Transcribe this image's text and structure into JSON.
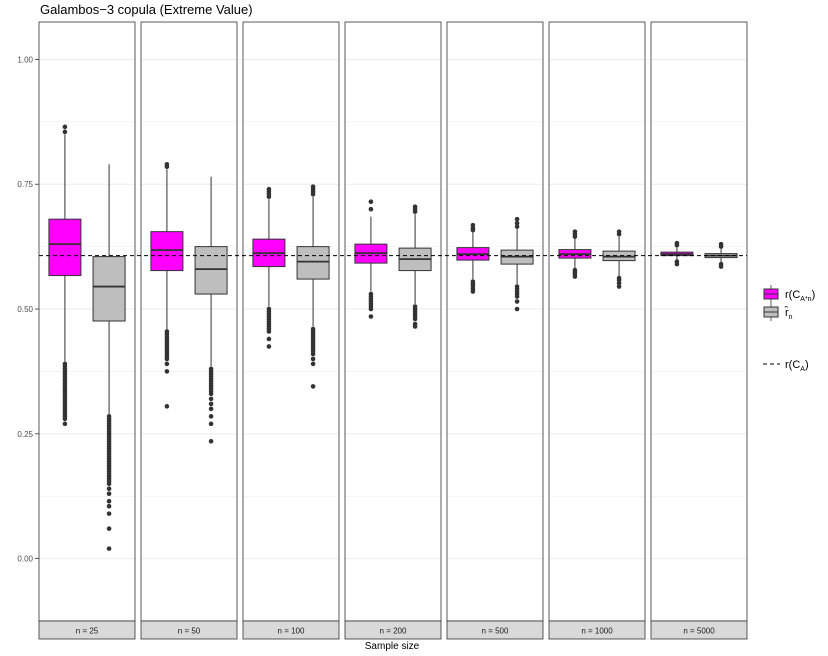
{
  "chart_data": {
    "type": "boxplot",
    "title": "Galambos−3 copula (Extreme Value)",
    "xlabel": "Sample size",
    "ylabel": "",
    "ylim": [
      -0.125,
      1.075
    ],
    "yticks": [
      0.0,
      0.25,
      0.5,
      0.75,
      1.0
    ],
    "ytick_labels": [
      "0.00",
      "0.25",
      "0.50",
      "0.75",
      "1.00"
    ],
    "reference_line": {
      "name": "r(C_A)",
      "value": 0.607,
      "style": "dashed"
    },
    "panels": [
      {
        "label": "n = 25",
        "boxes": [
          {
            "series": "r(C_A*n)",
            "q1": 0.567,
            "median": 0.63,
            "q3": 0.68,
            "whisker_low": 0.395,
            "whisker_high": 0.85,
            "outliers": [
              0.865,
              0.855,
              0.39,
              0.385,
              0.38,
              0.375,
              0.37,
              0.365,
              0.36,
              0.355,
              0.35,
              0.345,
              0.34,
              0.335,
              0.33,
              0.325,
              0.32,
              0.315,
              0.31,
              0.305,
              0.3,
              0.295,
              0.29,
              0.285,
              0.28,
              0.27
            ]
          },
          {
            "series": "r̂_n",
            "q1": 0.476,
            "median": 0.545,
            "q3": 0.605,
            "whisker_low": 0.29,
            "whisker_high": 0.79,
            "outliers": [
              0.285,
              0.28,
              0.275,
              0.27,
              0.265,
              0.26,
              0.255,
              0.25,
              0.245,
              0.24,
              0.235,
              0.23,
              0.225,
              0.22,
              0.215,
              0.21,
              0.205,
              0.2,
              0.195,
              0.19,
              0.185,
              0.18,
              0.175,
              0.17,
              0.165,
              0.16,
              0.155,
              0.15,
              0.14,
              0.13,
              0.115,
              0.105,
              0.09,
              0.06,
              0.02
            ]
          }
        ]
      },
      {
        "label": "n = 50",
        "boxes": [
          {
            "series": "r(C_A*n)",
            "q1": 0.577,
            "median": 0.618,
            "q3": 0.655,
            "whisker_low": 0.46,
            "whisker_high": 0.78,
            "outliers": [
              0.79,
              0.785,
              0.455,
              0.45,
              0.445,
              0.44,
              0.435,
              0.43,
              0.425,
              0.42,
              0.415,
              0.41,
              0.405,
              0.4,
              0.39,
              0.375,
              0.305
            ]
          },
          {
            "series": "r̂_n",
            "q1": 0.53,
            "median": 0.58,
            "q3": 0.625,
            "whisker_low": 0.385,
            "whisker_high": 0.765,
            "outliers": [
              0.38,
              0.375,
              0.37,
              0.365,
              0.36,
              0.355,
              0.35,
              0.345,
              0.34,
              0.335,
              0.33,
              0.32,
              0.31,
              0.3,
              0.285,
              0.27,
              0.235
            ]
          }
        ]
      },
      {
        "label": "n = 100",
        "boxes": [
          {
            "series": "r(C_A*n)",
            "q1": 0.585,
            "median": 0.612,
            "q3": 0.64,
            "whisker_low": 0.505,
            "whisker_high": 0.72,
            "outliers": [
              0.74,
              0.735,
              0.73,
              0.725,
              0.5,
              0.495,
              0.49,
              0.485,
              0.48,
              0.475,
              0.47,
              0.465,
              0.46,
              0.455,
              0.44,
              0.425
            ]
          },
          {
            "series": "r̂_n",
            "q1": 0.56,
            "median": 0.595,
            "q3": 0.625,
            "whisker_low": 0.465,
            "whisker_high": 0.725,
            "outliers": [
              0.745,
              0.74,
              0.735,
              0.73,
              0.46,
              0.455,
              0.45,
              0.445,
              0.44,
              0.435,
              0.43,
              0.425,
              0.42,
              0.415,
              0.41,
              0.4,
              0.39,
              0.345
            ]
          }
        ]
      },
      {
        "label": "n = 200",
        "boxes": [
          {
            "series": "r(C_A*n)",
            "q1": 0.592,
            "median": 0.612,
            "q3": 0.63,
            "whisker_low": 0.535,
            "whisker_high": 0.685,
            "outliers": [
              0.715,
              0.7,
              0.53,
              0.525,
              0.52,
              0.515,
              0.51,
              0.505,
              0.5,
              0.485
            ]
          },
          {
            "series": "r̂_n",
            "q1": 0.577,
            "median": 0.6,
            "q3": 0.622,
            "whisker_low": 0.51,
            "whisker_high": 0.69,
            "outliers": [
              0.705,
              0.7,
              0.695,
              0.505,
              0.5,
              0.495,
              0.49,
              0.485,
              0.48,
              0.47,
              0.465
            ]
          }
        ]
      },
      {
        "label": "n = 500",
        "boxes": [
          {
            "series": "r(C_A*n)",
            "q1": 0.598,
            "median": 0.61,
            "q3": 0.623,
            "whisker_low": 0.56,
            "whisker_high": 0.655,
            "outliers": [
              0.668,
              0.662,
              0.658,
              0.555,
              0.55,
              0.545,
              0.54,
              0.535
            ]
          },
          {
            "series": "r̂_n",
            "q1": 0.59,
            "median": 0.605,
            "q3": 0.618,
            "whisker_low": 0.55,
            "whisker_high": 0.66,
            "outliers": [
              0.68,
              0.672,
              0.665,
              0.545,
              0.54,
              0.535,
              0.53,
              0.525,
              0.515,
              0.5
            ]
          }
        ]
      },
      {
        "label": "n = 1000",
        "boxes": [
          {
            "series": "r(C_A*n)",
            "q1": 0.602,
            "median": 0.61,
            "q3": 0.619,
            "whisker_low": 0.58,
            "whisker_high": 0.643,
            "outliers": [
              0.655,
              0.65,
              0.645,
              0.578,
              0.574,
              0.57,
              0.565
            ]
          },
          {
            "series": "r̂_n",
            "q1": 0.597,
            "median": 0.605,
            "q3": 0.616,
            "whisker_low": 0.565,
            "whisker_high": 0.645,
            "outliers": [
              0.655,
              0.65,
              0.562,
              0.558,
              0.552,
              0.545
            ]
          }
        ]
      },
      {
        "label": "n = 5000",
        "boxes": [
          {
            "series": "r(C_A*n)",
            "q1": 0.607,
            "median": 0.61,
            "q3": 0.614,
            "whisker_low": 0.598,
            "whisker_high": 0.624,
            "outliers": [
              0.632,
              0.628,
              0.595,
              0.59
            ]
          },
          {
            "series": "r̂_n",
            "q1": 0.603,
            "median": 0.607,
            "q3": 0.611,
            "whisker_low": 0.592,
            "whisker_high": 0.62,
            "outliers": [
              0.63,
              0.625,
              0.59,
              0.585
            ]
          }
        ]
      }
    ],
    "legend": {
      "placement": "right",
      "items": [
        {
          "name": "r(C_A*n)",
          "main": "r(C",
          "sup": "^",
          "sub": "A*n",
          "tail": ")",
          "color": "#ff00ff",
          "kind": "box"
        },
        {
          "name": "r̂_n",
          "main": "r̂",
          "sub": "n",
          "color": "#bebebe",
          "kind": "box"
        },
        {
          "name": "r(C_A)",
          "main": "r(C",
          "sub": "A",
          "tail": ")",
          "kind": "dashed"
        }
      ]
    },
    "colors": {
      "magenta": "#ff00ff",
      "gray": "#bebebe",
      "strip": "#d9d9d9",
      "grid": "#ebebeb",
      "outlier": "#333333"
    }
  }
}
